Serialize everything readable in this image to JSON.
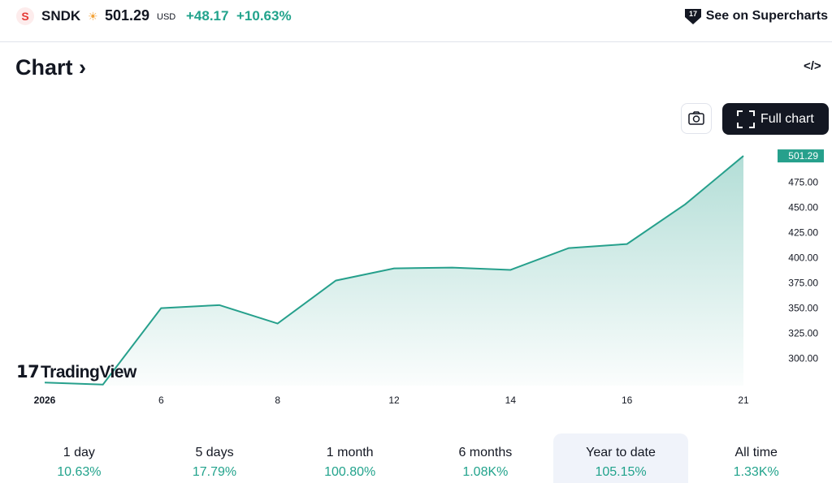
{
  "header": {
    "logo": "S",
    "symbol": "SNDK",
    "price": "501.29",
    "currency": "USD",
    "change": "+48.17",
    "change_percent": "+10.63%",
    "supercharts": "See on Supercharts"
  },
  "section_title": "Chart",
  "full_chart": "Full chart",
  "watermark": "TradingView",
  "chart_data": {
    "type": "area",
    "categories": [
      "2026",
      null,
      "6",
      null,
      "8",
      null,
      "12",
      null,
      "14",
      null,
      "16",
      null,
      "21"
    ],
    "values": [
      276,
      274,
      350,
      353,
      334.7,
      377.4,
      389.5,
      390.3,
      388,
      409.7,
      413.7,
      453.2,
      501.29
    ],
    "color": "#26a08c",
    "ylim": [
      273,
      507
    ],
    "yticks": [
      {
        "value": 300,
        "label": "300.00"
      },
      {
        "value": 325,
        "label": "325.00"
      },
      {
        "value": 350,
        "label": "350.00"
      },
      {
        "value": 375,
        "label": "375.00"
      },
      {
        "value": 400,
        "label": "400.00"
      },
      {
        "value": 425,
        "label": "425.00"
      },
      {
        "value": 450,
        "label": "450.00"
      },
      {
        "value": 475,
        "label": "475.00"
      }
    ]
  },
  "periods": [
    {
      "label": "1 day",
      "value": "10.63%"
    },
    {
      "label": "5 days",
      "value": "17.79%"
    },
    {
      "label": "1 month",
      "value": "100.80%"
    },
    {
      "label": "6 months",
      "value": "1.08K%"
    },
    {
      "label": "Year to date",
      "value": "105.15%"
    },
    {
      "label": "All time",
      "value": "1.33K%"
    }
  ]
}
